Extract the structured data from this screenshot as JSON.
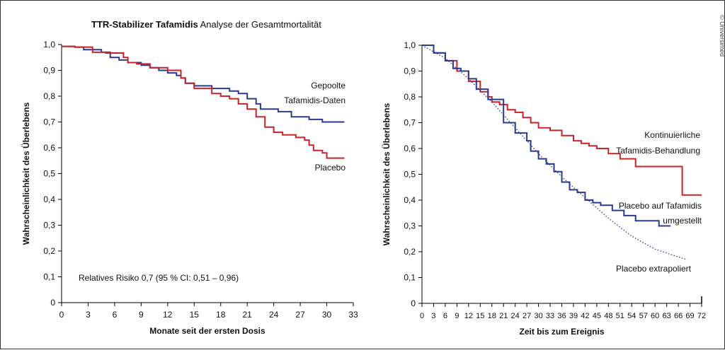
{
  "title_bold": "TTR-Stabilizer Tafamidis",
  "title_rest": "Analyse der Gesamtmortalität",
  "copyright": "© Universimed",
  "colors": {
    "red": "#cc2229",
    "blue": "#2b3990",
    "axis": "#000000"
  },
  "chart_data": [
    {
      "type": "line",
      "xlabel": "Monate seit der ersten Dosis",
      "ylabel": "Wahrscheinlichkeit des Überlebens",
      "xlim": [
        0,
        33
      ],
      "ylim": [
        0,
        1.0
      ],
      "xticks": [
        "0",
        "3",
        "6",
        "9",
        "12",
        "15",
        "18",
        "21",
        "24",
        "27",
        "30",
        "33"
      ],
      "yticks": [
        "0",
        "0,1",
        "0,2",
        "0,3",
        "0,4",
        "0,5",
        "0,6",
        "0,7",
        "0,8",
        "0,9",
        "1,0"
      ],
      "annotation": "Relatives Risiko 0,7 (95 % CI: 0,51 – 0,96)",
      "series": [
        {
          "label_lines": [
            "Gepoolte",
            "Tafamidis-Daten"
          ],
          "color_key": "blue",
          "style": "step",
          "x": [
            0,
            1.5,
            2.5,
            4.5,
            5.5,
            6.5,
            7.5,
            9,
            10,
            11,
            12,
            13,
            13.5,
            14,
            15,
            17,
            19,
            20,
            21,
            22,
            22.5,
            24.5,
            26,
            28,
            29.5,
            32
          ],
          "y": [
            0.993,
            0.99,
            0.98,
            0.97,
            0.95,
            0.94,
            0.93,
            0.92,
            0.91,
            0.9,
            0.89,
            0.88,
            0.87,
            0.85,
            0.84,
            0.83,
            0.82,
            0.81,
            0.79,
            0.77,
            0.75,
            0.74,
            0.72,
            0.71,
            0.7,
            0.7
          ]
        },
        {
          "label_lines": [
            "Placebo"
          ],
          "color_key": "red",
          "style": "step",
          "x": [
            0,
            1.5,
            3.5,
            5,
            7,
            7.5,
            8.5,
            10,
            12,
            13.5,
            14,
            15,
            17,
            18,
            19,
            20,
            21,
            22,
            23,
            24,
            25,
            26.5,
            27.5,
            28,
            28.5,
            29.5,
            30,
            32
          ],
          "y": [
            0.993,
            0.99,
            0.97,
            0.967,
            0.95,
            0.93,
            0.925,
            0.91,
            0.9,
            0.87,
            0.85,
            0.83,
            0.81,
            0.8,
            0.79,
            0.77,
            0.75,
            0.72,
            0.68,
            0.66,
            0.65,
            0.64,
            0.63,
            0.61,
            0.59,
            0.58,
            0.56,
            0.56
          ]
        }
      ]
    },
    {
      "type": "line",
      "xlabel": "Zeit bis zum Ereignis",
      "ylabel": "Wahrscheinlichkeit des Überlebens",
      "xlim": [
        0,
        72
      ],
      "ylim": [
        0,
        1.0
      ],
      "xticks": [
        "0",
        "3",
        "6",
        "9",
        "12",
        "15",
        "18",
        "21",
        "24",
        "27",
        "30",
        "33",
        "36",
        "39",
        "42",
        "45",
        "48",
        "51",
        "54",
        "57",
        "60",
        "63",
        "66",
        "69",
        "72"
      ],
      "yticks": [
        "0",
        "0,1",
        "0,2",
        "0,3",
        "0,4",
        "0,5",
        "0,6",
        "0,7",
        "0,8",
        "0,9",
        "1,0"
      ],
      "series": [
        {
          "label_lines": [
            "Kontinuierliche",
            "Tafamidis-Behandlung"
          ],
          "color_key": "red",
          "style": "step",
          "x": [
            0,
            3,
            6,
            9,
            12,
            15,
            17,
            18,
            20,
            22,
            24,
            26,
            28,
            30,
            33,
            36,
            39,
            41,
            43,
            45,
            48,
            51,
            55,
            60,
            63,
            66,
            67,
            72
          ],
          "y": [
            1.0,
            0.97,
            0.94,
            0.9,
            0.86,
            0.82,
            0.8,
            0.78,
            0.77,
            0.75,
            0.74,
            0.72,
            0.7,
            0.68,
            0.67,
            0.65,
            0.63,
            0.62,
            0.61,
            0.6,
            0.58,
            0.56,
            0.53,
            0.53,
            0.53,
            0.53,
            0.42,
            0.42
          ]
        },
        {
          "label_lines": [
            "Placebo auf Tafamidis",
            "umgestellt"
          ],
          "color_key": "blue",
          "style": "step",
          "x": [
            0,
            3,
            6,
            8,
            10,
            12,
            14,
            17,
            21,
            24,
            27,
            28,
            30,
            32,
            34,
            36,
            38,
            40,
            42,
            44,
            46,
            49,
            52,
            55,
            58,
            61,
            64
          ],
          "y": [
            1.0,
            0.97,
            0.94,
            0.91,
            0.9,
            0.87,
            0.83,
            0.79,
            0.7,
            0.66,
            0.63,
            0.59,
            0.56,
            0.54,
            0.51,
            0.47,
            0.44,
            0.43,
            0.4,
            0.39,
            0.38,
            0.36,
            0.34,
            0.32,
            0.32,
            0.3,
            0.3
          ]
        },
        {
          "label_lines": [
            "Placebo extrapoliert"
          ],
          "color_key": "blue",
          "style": "dotted",
          "x": [
            0,
            6,
            12,
            18,
            24,
            30,
            36,
            42,
            48,
            54,
            60,
            66,
            68
          ],
          "y": [
            1.0,
            0.95,
            0.87,
            0.78,
            0.68,
            0.58,
            0.49,
            0.41,
            0.33,
            0.26,
            0.21,
            0.18,
            0.17
          ]
        }
      ]
    }
  ]
}
